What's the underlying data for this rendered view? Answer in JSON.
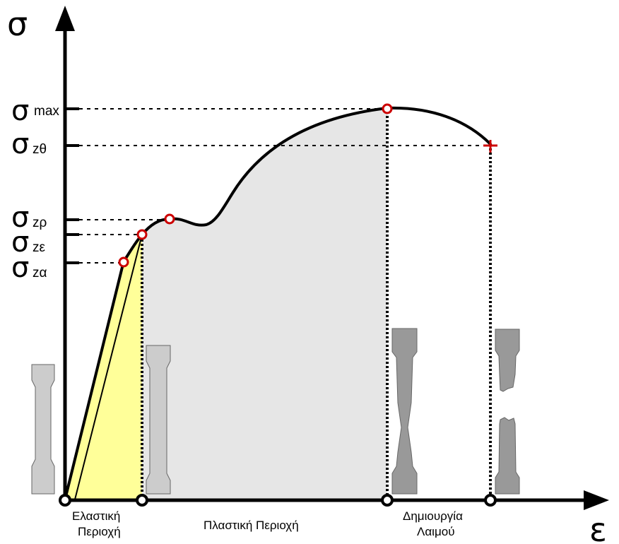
{
  "axes": {
    "y_symbol": "σ",
    "x_symbol": "ε"
  },
  "stress_levels": [
    {
      "main": "σ",
      "sub": "max"
    },
    {
      "main": "σ",
      "sub": "zθ"
    },
    {
      "main": "σ",
      "sub": "zρ"
    },
    {
      "main": "σ",
      "sub": "zε"
    },
    {
      "main": "σ",
      "sub": "zα"
    }
  ],
  "regions": {
    "elastic_line1": "Ελαστική",
    "elastic_line2": "Περιοχή",
    "plastic": "Πλαστική Περιοχή",
    "necking_line1": "Δημιουργία",
    "necking_line2": "Λαιμού"
  },
  "colors": {
    "curve": "#000000",
    "elastic_fill": "#ffff99",
    "plastic_fill": "#e6e6e6",
    "marker_red": "#cc0000",
    "specimen_light": "#cccccc",
    "specimen_dark": "#999999"
  }
}
